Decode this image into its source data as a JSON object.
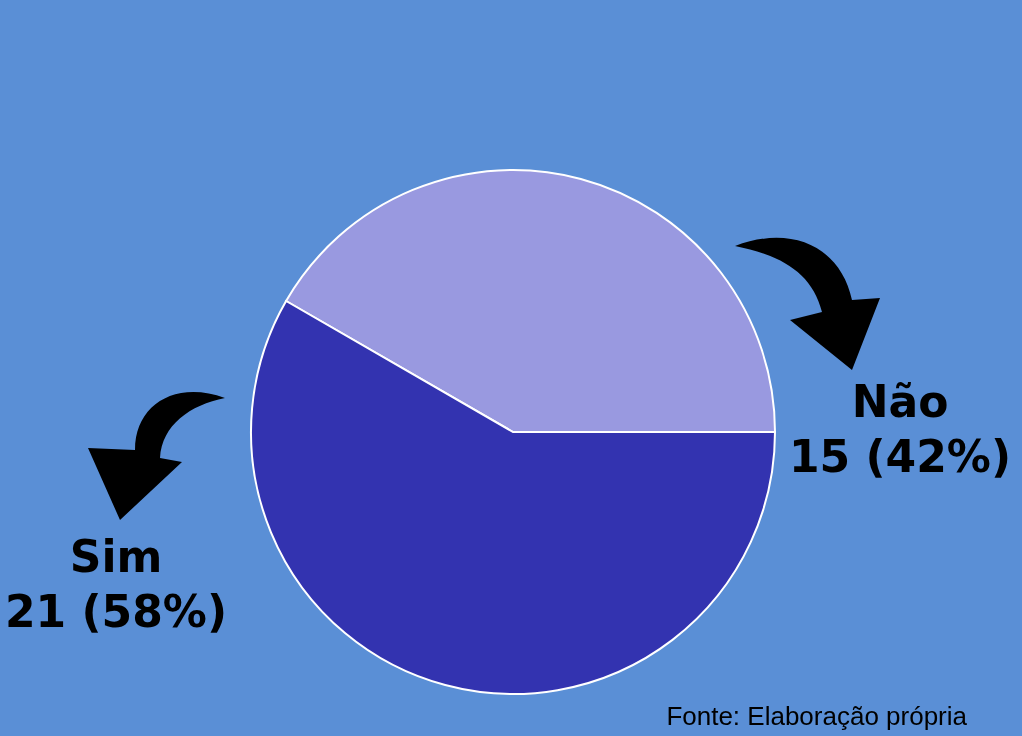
{
  "chart_data": {
    "type": "pie",
    "categories": [
      "Não",
      "Sim"
    ],
    "values": [
      15,
      21
    ],
    "colors": [
      "#9999e0",
      "#3333b0"
    ],
    "value_labels": [
      "15 (42%)",
      "21 (58%)"
    ],
    "annotations": [
      "Fonte: Elaboração própria"
    ]
  }
}
